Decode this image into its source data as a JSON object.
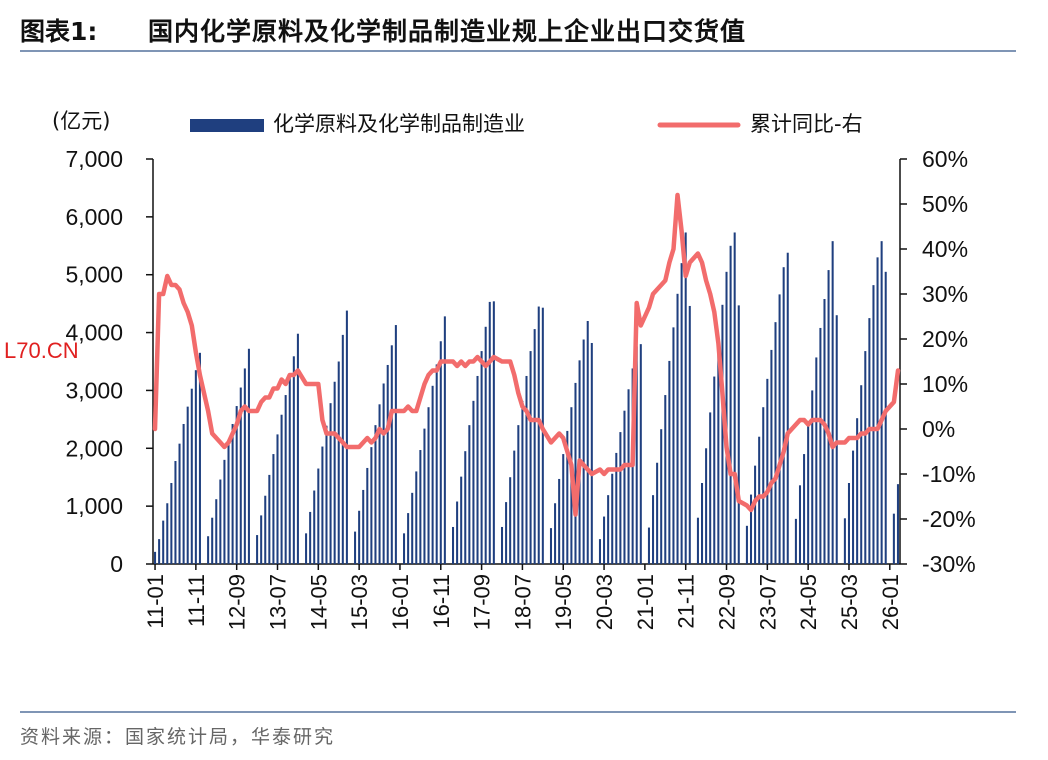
{
  "header": {
    "figure_label": "图表1:",
    "title": "国内化学原料及化学制品制造业规上企业出口交货值"
  },
  "footer": {
    "source": "资料来源：国家统计局，华泰研究"
  },
  "watermark": "L70.CN",
  "colors": {
    "bar": "#1f3f7f",
    "line": "#f26c6c",
    "rule": "#7f95b5"
  },
  "chart_data": {
    "type": "bar",
    "y_unit_label": "(亿元)",
    "ylim": [
      0,
      7000
    ],
    "y_ticks": [
      "0",
      "1,000",
      "2,000",
      "3,000",
      "4,000",
      "5,000",
      "6,000",
      "7,000"
    ],
    "y2lim": [
      -0.3,
      0.6
    ],
    "y2_ticks": [
      "-30%",
      "-20%",
      "-10%",
      "0%",
      "10%",
      "20%",
      "30%",
      "40%",
      "50%",
      "60%"
    ],
    "x_tick_labels": [
      "11-01",
      "11-11",
      "12-09",
      "13-07",
      "14-05",
      "15-03",
      "16-01",
      "16-11",
      "17-09",
      "18-07",
      "19-05",
      "20-03",
      "21-01",
      "21-11",
      "22-09",
      "23-07",
      "24-05",
      "25-03",
      "26-01"
    ],
    "legend_position": "top",
    "series": [
      {
        "name": "化学原料及化学制品制造业",
        "type": "bar",
        "axis": "left",
        "note": "cumulative monthly values, Jan-Feb reported jointly (no Jan bar except 2011)",
        "values": {
          "2011": [
            210,
            430,
            750,
            1050,
            1400,
            1780,
            2080,
            2420,
            2720,
            3030,
            3350,
            3650
          ],
          "2012": [
            null,
            480,
            800,
            1120,
            1460,
            1800,
            2100,
            2420,
            2730,
            3050,
            3380,
            3720
          ],
          "2013": [
            null,
            500,
            840,
            1180,
            1540,
            1900,
            2240,
            2580,
            2920,
            3250,
            3590,
            3980
          ],
          "2014": [
            null,
            530,
            900,
            1270,
            1650,
            2030,
            2390,
            2780,
            3150,
            3500,
            3960,
            4380
          ],
          "2015": [
            null,
            560,
            920,
            1280,
            1660,
            2020,
            2400,
            2760,
            3120,
            3440,
            3780,
            4130
          ],
          "2016": [
            null,
            530,
            880,
            1230,
            1600,
            1970,
            2340,
            2710,
            3080,
            3450,
            3850,
            4280
          ],
          "2017": [
            null,
            640,
            1080,
            1510,
            1950,
            2400,
            2820,
            3250,
            3680,
            4100,
            4530,
            4540
          ],
          "2018": [
            null,
            640,
            1070,
            1500,
            1960,
            2400,
            2820,
            3250,
            3680,
            4060,
            4450,
            4430
          ],
          "2019": [
            null,
            620,
            1050,
            1470,
            1900,
            2300,
            2710,
            3130,
            3520,
            3880,
            4200,
            3820
          ],
          "2020": [
            null,
            430,
            820,
            1190,
            1560,
            1920,
            2280,
            2650,
            3020,
            3380,
            3760,
            3800
          ],
          "2021": [
            null,
            630,
            1190,
            1750,
            2330,
            2920,
            3510,
            4090,
            4670,
            5200,
            5730,
            4460
          ],
          "2022": [
            null,
            800,
            1400,
            2000,
            2620,
            3240,
            3860,
            4480,
            5050,
            5500,
            5730,
            4470
          ],
          "2023": [
            null,
            660,
            1200,
            1700,
            2200,
            2710,
            3200,
            3700,
            4180,
            4660,
            5130,
            5380
          ],
          "2024": [
            null,
            780,
            1360,
            1900,
            2450,
            3000,
            3570,
            4080,
            4580,
            5080,
            5580,
            4300
          ],
          "2025": [
            null,
            790,
            1400,
            1960,
            2520,
            3090,
            3680,
            4250,
            4820,
            5300,
            5580,
            5050
          ],
          "2026": [
            null,
            870,
            1380
          ]
        }
      },
      {
        "name": "累计同比-右",
        "type": "line",
        "axis": "right",
        "values": {
          "2011": [
            0.0,
            0.3,
            0.3,
            0.34,
            0.32,
            0.32,
            0.31,
            0.28,
            0.26,
            0.23,
            0.17,
            0.12
          ],
          "2012": [
            null,
            0.04,
            -0.01,
            -0.02,
            -0.03,
            -0.04,
            -0.03,
            -0.01,
            0.01,
            0.04,
            0.05,
            0.04
          ],
          "2013": [
            null,
            0.04,
            0.06,
            0.07,
            0.07,
            0.09,
            0.09,
            0.11,
            0.1,
            0.12,
            0.12,
            0.13
          ],
          "2014": [
            null,
            0.1,
            0.1,
            0.1,
            0.1,
            0.02,
            -0.01,
            -0.01,
            -0.01,
            -0.02,
            -0.03,
            -0.04
          ],
          "2015": [
            null,
            -0.04,
            -0.04,
            -0.03,
            -0.02,
            -0.03,
            -0.02,
            0.0,
            -0.01,
            0.0,
            0.04,
            0.04
          ],
          "2016": [
            null,
            0.04,
            0.05,
            0.04,
            0.04,
            0.07,
            0.1,
            0.12,
            0.13,
            0.13,
            0.15,
            0.15
          ],
          "2017": [
            null,
            0.15,
            0.14,
            0.15,
            0.14,
            0.15,
            0.15,
            0.16,
            0.15,
            0.14,
            0.15,
            0.16
          ],
          "2018": [
            null,
            0.15,
            0.15,
            0.15,
            0.12,
            0.08,
            0.05,
            0.04,
            0.02,
            0.02,
            0.02,
            0.0
          ],
          "2019": [
            null,
            -0.03,
            -0.02,
            -0.01,
            -0.02,
            -0.05,
            -0.08,
            -0.19,
            -0.07,
            -0.08,
            -0.09,
            -0.1
          ],
          "2020": [
            null,
            -0.09,
            -0.1,
            -0.09,
            -0.09,
            -0.09,
            -0.09,
            -0.08,
            -0.08,
            -0.08,
            0.28,
            0.23
          ],
          "2021": [
            null,
            0.27,
            0.3,
            0.31,
            0.32,
            0.33,
            0.37,
            0.4,
            0.52,
            0.44,
            0.34,
            0.37
          ],
          "2022": [
            null,
            0.39,
            0.37,
            0.33,
            0.3,
            0.26,
            0.19,
            0.08,
            -0.04,
            -0.1,
            -0.1,
            -0.16
          ],
          "2023": [
            null,
            -0.17,
            -0.18,
            -0.16,
            -0.15,
            -0.15,
            -0.14,
            -0.12,
            -0.11,
            -0.08,
            -0.05,
            -0.01
          ],
          "2024": [
            null,
            0.01,
            0.02,
            0.02,
            0.01,
            0.02,
            0.02,
            0.02,
            0.01,
            -0.01,
            -0.04,
            -0.03
          ],
          "2025": [
            null,
            -0.03,
            -0.02,
            -0.02,
            -0.02,
            -0.01,
            -0.01,
            0.0,
            0.0,
            0.0,
            0.02,
            0.04
          ],
          "2026": [
            null,
            0.06,
            0.13
          ]
        }
      }
    ]
  }
}
